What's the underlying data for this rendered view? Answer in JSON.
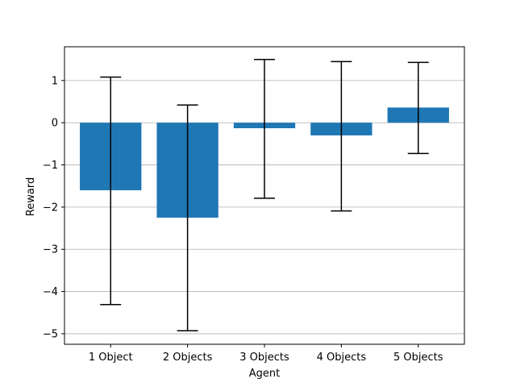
{
  "chart_data": {
    "type": "bar",
    "title": "",
    "xlabel": "Agent",
    "ylabel": "Reward",
    "categories": [
      "1 Object",
      "2 Objects",
      "3 Objects",
      "4 Objects",
      "5 Objects"
    ],
    "values": [
      -1.6,
      -2.25,
      -0.13,
      -0.3,
      0.36
    ],
    "error_low": [
      -4.31,
      -4.93,
      -1.79,
      -2.09,
      -0.73
    ],
    "error_high": [
      1.08,
      0.42,
      1.5,
      1.45,
      1.43
    ],
    "ylim": [
      -5.25,
      1.8
    ],
    "yticks": [
      1,
      0,
      -1,
      -2,
      -3,
      -4,
      -5
    ],
    "ytick_labels": [
      "1",
      "0",
      "−1",
      "−2",
      "−3",
      "−4",
      "−5"
    ],
    "grid": "y",
    "bar_color": "#1f77b4",
    "error_color": "#000000",
    "grid_color": "#b0b0b0"
  }
}
